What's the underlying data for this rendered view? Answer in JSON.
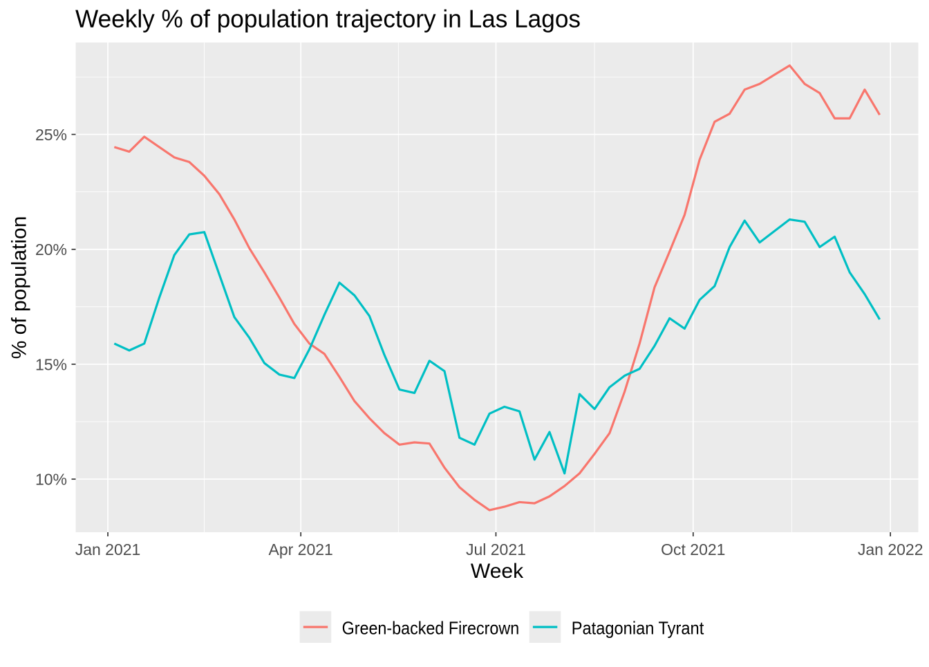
{
  "chart_data": {
    "type": "line",
    "title": "Weekly % of population trajectory in Las Lagos",
    "xlabel": "Week",
    "ylabel": "% of population",
    "legend_position": "bottom",
    "grid": true,
    "panel_bg": "#EBEBEB",
    "grid_color": "#FFFFFF",
    "tick_color": "#333333",
    "tick_label_color": "#4D4D4D",
    "x": [
      "2021-01-04",
      "2021-01-11",
      "2021-01-18",
      "2021-01-25",
      "2021-02-01",
      "2021-02-08",
      "2021-02-15",
      "2021-02-22",
      "2021-03-01",
      "2021-03-08",
      "2021-03-15",
      "2021-03-22",
      "2021-03-29",
      "2021-04-05",
      "2021-04-12",
      "2021-04-19",
      "2021-04-26",
      "2021-05-03",
      "2021-05-10",
      "2021-05-17",
      "2021-05-24",
      "2021-05-31",
      "2021-06-07",
      "2021-06-14",
      "2021-06-21",
      "2021-06-28",
      "2021-07-05",
      "2021-07-12",
      "2021-07-19",
      "2021-07-26",
      "2021-08-02",
      "2021-08-09",
      "2021-08-16",
      "2021-08-23",
      "2021-08-30",
      "2021-09-06",
      "2021-09-13",
      "2021-09-20",
      "2021-09-27",
      "2021-10-04",
      "2021-10-11",
      "2021-10-18",
      "2021-10-25",
      "2021-11-01",
      "2021-11-08",
      "2021-11-15",
      "2021-11-22",
      "2021-11-29",
      "2021-12-06",
      "2021-12-13",
      "2021-12-20",
      "2021-12-27"
    ],
    "series": [
      {
        "name": "Green-backed Firecrown",
        "color": "#F8766D",
        "values": [
          24.45,
          24.25,
          24.9,
          24.45,
          24.0,
          23.8,
          23.2,
          22.4,
          21.3,
          20.05,
          19.0,
          17.9,
          16.75,
          15.9,
          15.45,
          14.45,
          13.4,
          12.65,
          12.0,
          11.5,
          11.6,
          11.55,
          10.5,
          9.65,
          9.1,
          8.65,
          8.8,
          9.0,
          8.95,
          9.25,
          9.7,
          10.25,
          11.1,
          12.0,
          13.8,
          15.9,
          18.35,
          19.9,
          21.5,
          23.9,
          25.55,
          25.9,
          26.95,
          27.2,
          27.6,
          28.0,
          27.2,
          26.8,
          25.7,
          25.7,
          26.95,
          25.85
        ]
      },
      {
        "name": "Patagonian Tyrant",
        "color": "#00BFC4",
        "values": [
          15.9,
          15.6,
          15.9,
          17.9,
          19.75,
          20.65,
          20.75,
          18.9,
          17.05,
          16.15,
          15.05,
          14.55,
          14.4,
          15.65,
          17.15,
          18.55,
          18.0,
          17.1,
          15.4,
          13.9,
          13.75,
          15.15,
          14.7,
          11.8,
          11.5,
          12.85,
          13.15,
          12.95,
          10.85,
          12.05,
          10.25,
          13.7,
          13.05,
          14.0,
          14.5,
          14.8,
          15.8,
          17.0,
          16.55,
          17.8,
          18.4,
          20.1,
          21.25,
          20.3,
          20.8,
          21.3,
          21.2,
          20.1,
          20.55,
          19.0,
          18.05,
          16.95
        ]
      }
    ],
    "x_ticks": [
      {
        "date": "2021-01-01",
        "label": "Jan 2021"
      },
      {
        "date": "2021-04-01",
        "label": "Apr 2021"
      },
      {
        "date": "2021-07-01",
        "label": "Jul 2021"
      },
      {
        "date": "2021-10-01",
        "label": "Oct 2021"
      },
      {
        "date": "2022-01-01",
        "label": "Jan 2022"
      }
    ],
    "y_ticks": [
      {
        "value": 10,
        "label": "10%"
      },
      {
        "value": 15,
        "label": "15%"
      },
      {
        "value": 20,
        "label": "20%"
      },
      {
        "value": 25,
        "label": "25%"
      }
    ],
    "y_minor": [
      12.5,
      17.5,
      22.5,
      27.5
    ],
    "ylim": [
      7.69,
      29.0
    ],
    "xlim": [
      "2020-12-17",
      "2022-01-14"
    ]
  }
}
